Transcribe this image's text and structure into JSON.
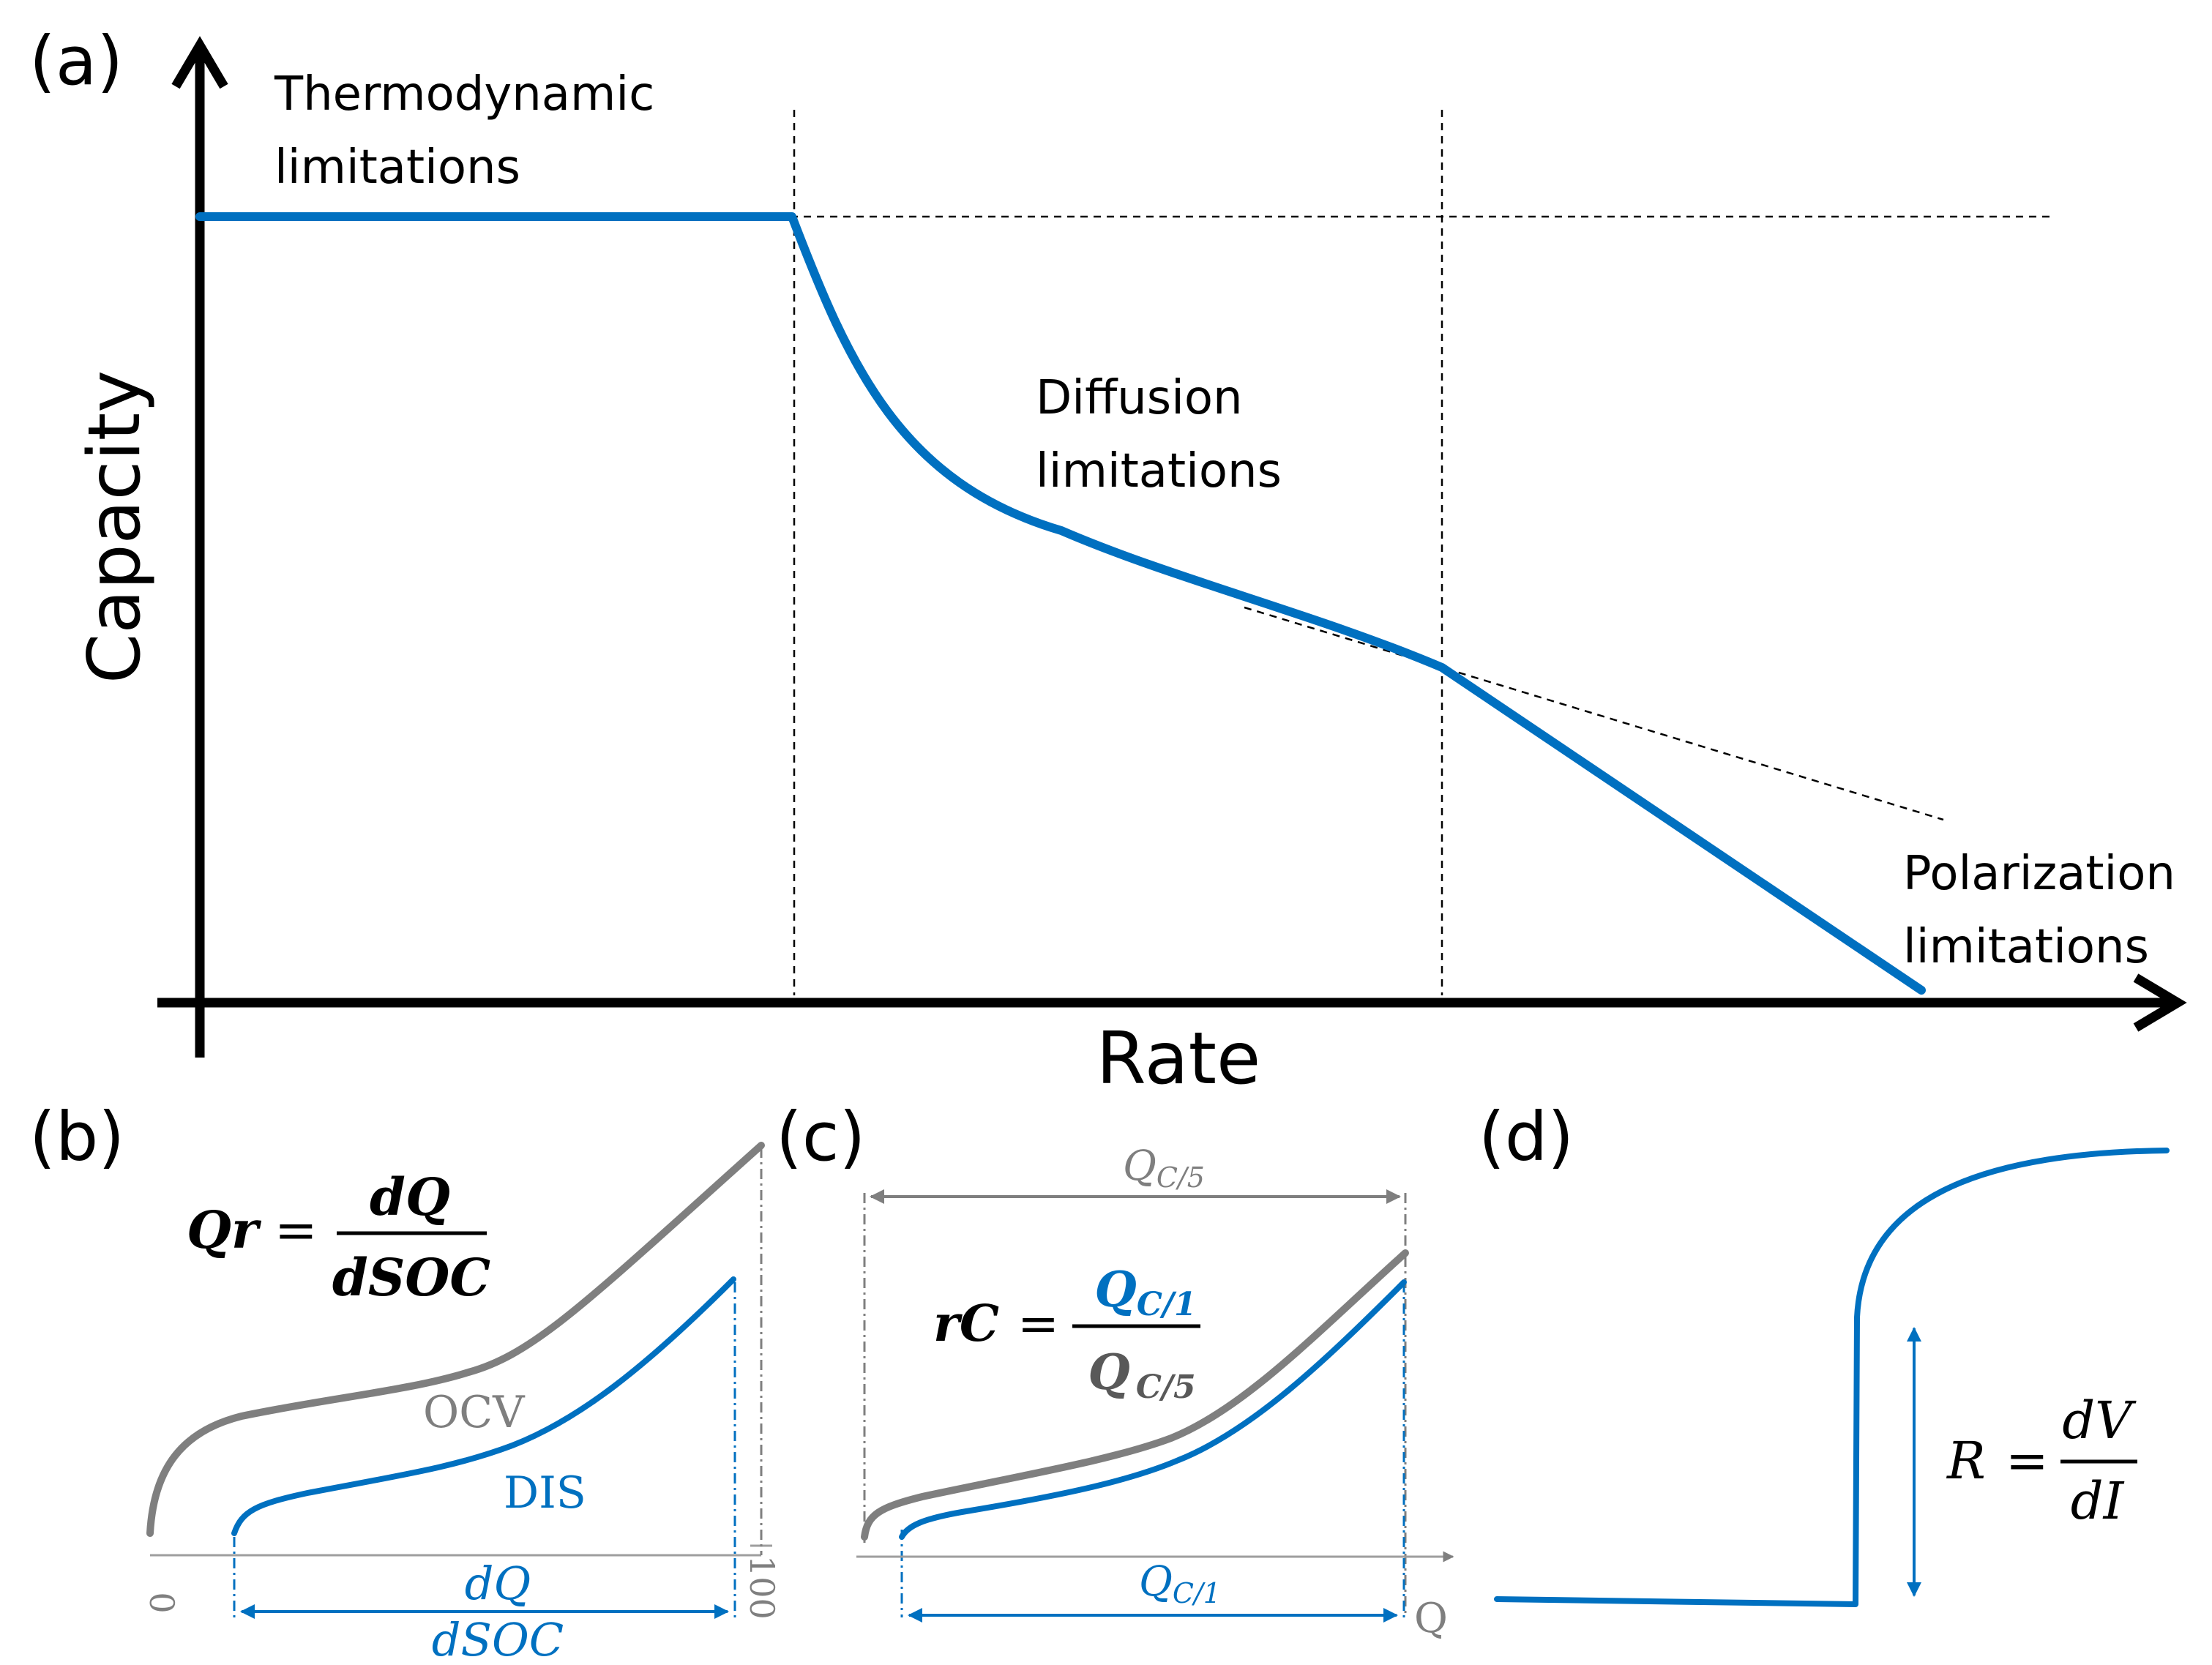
{
  "colors": {
    "blue": "#0070c0",
    "gray": "#7f7f7f",
    "black": "#000000"
  },
  "panel_a": {
    "label": "(a)",
    "y_axis_label": "Capacity",
    "x_axis_label": "Rate",
    "regions": {
      "thermo_line1": "Thermodynamic",
      "thermo_line2": "limitations",
      "diffusion_line1": "Diffusion",
      "diffusion_line2": "limitations",
      "polar_line1": "Polarization",
      "polar_line2": "limitations"
    }
  },
  "panel_b": {
    "label": "(b)",
    "formula_lhs": "Qr",
    "formula_eq": "=",
    "formula_num": "dQ",
    "formula_den": "dSOC",
    "ocv_label": "OCV",
    "dis_label": "DIS",
    "axis_start": "0",
    "axis_end": "100",
    "bracket_num": "dQ",
    "bracket_den": "dSOC"
  },
  "panel_c": {
    "label": "(c)",
    "top_bracket_main": "Q",
    "top_bracket_sub": "C/5",
    "formula_lhs": "rC",
    "formula_eq": "=",
    "formula_num_main": "Q",
    "formula_num_sub": "C/1",
    "formula_den_main": "Q",
    "formula_den_sub": "C/5",
    "bottom_bracket_main": "Q",
    "bottom_bracket_sub": "C/1",
    "axis_label": "Q"
  },
  "panel_d": {
    "label": "(d)",
    "formula_lhs": "R",
    "formula_eq": "=",
    "formula_num": "dV",
    "formula_den": "dI"
  }
}
